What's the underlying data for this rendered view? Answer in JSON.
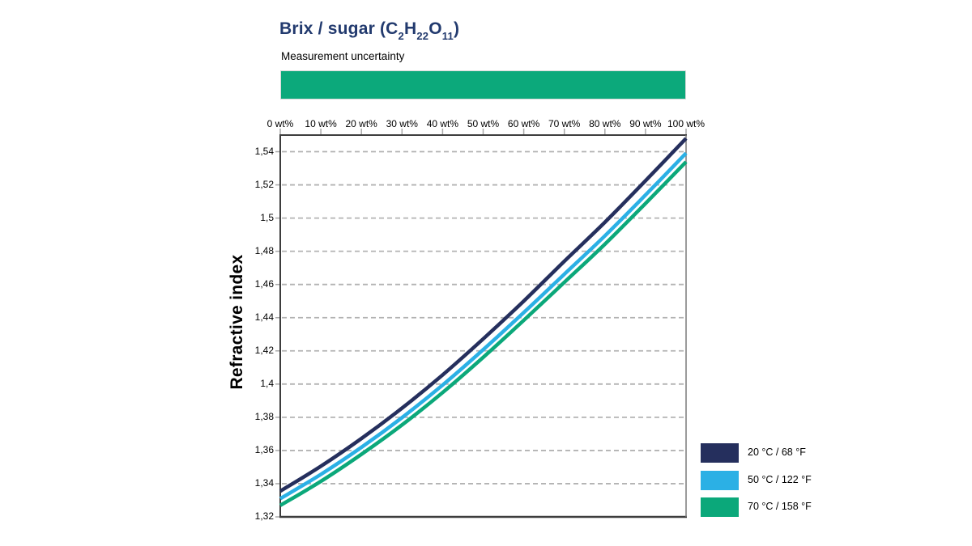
{
  "header": {
    "title_segments": [
      {
        "text": "Brix / sugar (C",
        "sub": false
      },
      {
        "text": "2",
        "sub": true
      },
      {
        "text": "H",
        "sub": false
      },
      {
        "text": "22",
        "sub": true
      },
      {
        "text": "O",
        "sub": false
      },
      {
        "text": "11",
        "sub": true
      },
      {
        "text": ")",
        "sub": false
      }
    ],
    "title_color": "#223a6e",
    "subtitle": "Measurement uncertainty"
  },
  "uncertainty_bar": {
    "color": "#0ca97b"
  },
  "chart_data": {
    "type": "line",
    "title": "Brix / sugar (C2H22O11)",
    "xlabel": "wt%",
    "ylabel": "Refractive index",
    "x": [
      0,
      10,
      20,
      30,
      40,
      50,
      60,
      70,
      80,
      90,
      100
    ],
    "x_tick_labels": [
      "0 wt%",
      "10 wt%",
      "20 wt%",
      "30 wt%",
      "40 wt%",
      "50 wt%",
      "60 wt%",
      "70 wt%",
      "80 wt%",
      "90 wt%",
      "100 wt%"
    ],
    "y_tick_values": [
      1.32,
      1.34,
      1.36,
      1.38,
      1.4,
      1.42,
      1.44,
      1.46,
      1.48,
      1.5,
      1.52,
      1.54
    ],
    "y_tick_labels": [
      "1,32",
      "1,34",
      "1,36",
      "1,38",
      "1,4",
      "1,42",
      "1,44",
      "1,46",
      "1,48",
      "1,5",
      "1,52",
      "1,54"
    ],
    "xlim": [
      0,
      100
    ],
    "ylim": [
      1.32,
      1.55
    ],
    "grid": "horizontal-dashed",
    "x_axis_position": "top",
    "legend_position": "right-bottom",
    "series": [
      {
        "name": "20 °C / 68 °F",
        "color": "#252f5d",
        "values": [
          1.3355,
          1.3505,
          1.3672,
          1.3855,
          1.4055,
          1.4272,
          1.45,
          1.474,
          1.4975,
          1.5225,
          1.548
        ]
      },
      {
        "name": "50 °C / 122 °F",
        "color": "#2bb0e5",
        "values": [
          1.331,
          1.3456,
          1.3619,
          1.3798,
          1.3994,
          1.4207,
          1.4431,
          1.4662,
          1.4893,
          1.5139,
          1.5391
        ]
      },
      {
        "name": "70 °C / 158 °F",
        "color": "#0ba87a",
        "values": [
          1.3269,
          1.3414,
          1.3577,
          1.3754,
          1.3949,
          1.4161,
          1.4384,
          1.4613,
          1.4843,
          1.5088,
          1.5339
        ]
      }
    ]
  }
}
